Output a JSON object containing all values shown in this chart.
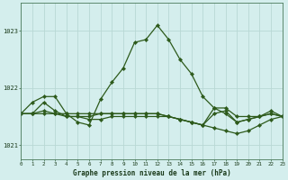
{
  "title": "Graphe pression niveau de la mer (hPa)",
  "bg_color": "#d4eeed",
  "grid_color": "#b8d8d4",
  "line_color": "#2d5a1b",
  "x_min": 0,
  "x_max": 23,
  "y_min": 1020.75,
  "y_max": 1023.5,
  "y_ticks": [
    1021,
    1022,
    1023
  ],
  "x_ticks": [
    0,
    1,
    2,
    3,
    4,
    5,
    6,
    7,
    8,
    9,
    10,
    11,
    12,
    13,
    14,
    15,
    16,
    17,
    18,
    19,
    20,
    21,
    22,
    23
  ],
  "series1": [
    1021.55,
    1021.75,
    1021.85,
    1021.85,
    1021.55,
    1021.4,
    1021.35,
    1021.8,
    1022.1,
    1022.35,
    1022.8,
    1022.85,
    1023.1,
    1022.85,
    1022.5,
    1022.25,
    1021.85,
    1021.65,
    1021.55,
    1021.4,
    1021.45,
    1021.5,
    1021.6,
    1021.5
  ],
  "series2": [
    1021.55,
    1021.55,
    1021.75,
    1021.6,
    1021.5,
    1021.5,
    1021.5,
    1021.55,
    1021.55,
    1021.55,
    1021.55,
    1021.55,
    1021.55,
    1021.5,
    1021.45,
    1021.4,
    1021.35,
    1021.65,
    1021.65,
    1021.5,
    1021.5,
    1021.5,
    1021.55,
    1021.5
  ],
  "series3": [
    1021.55,
    1021.55,
    1021.55,
    1021.55,
    1021.55,
    1021.55,
    1021.55,
    1021.55,
    1021.55,
    1021.55,
    1021.55,
    1021.55,
    1021.55,
    1021.5,
    1021.45,
    1021.4,
    1021.35,
    1021.3,
    1021.25,
    1021.2,
    1021.25,
    1021.35,
    1021.45,
    1021.5
  ],
  "series4": [
    1021.55,
    1021.55,
    1021.6,
    1021.55,
    1021.5,
    1021.5,
    1021.45,
    1021.45,
    1021.5,
    1021.5,
    1021.5,
    1021.5,
    1021.5,
    1021.5,
    1021.45,
    1021.4,
    1021.35,
    1021.55,
    1021.6,
    1021.4,
    1021.45,
    1021.5,
    1021.55,
    1021.5
  ]
}
